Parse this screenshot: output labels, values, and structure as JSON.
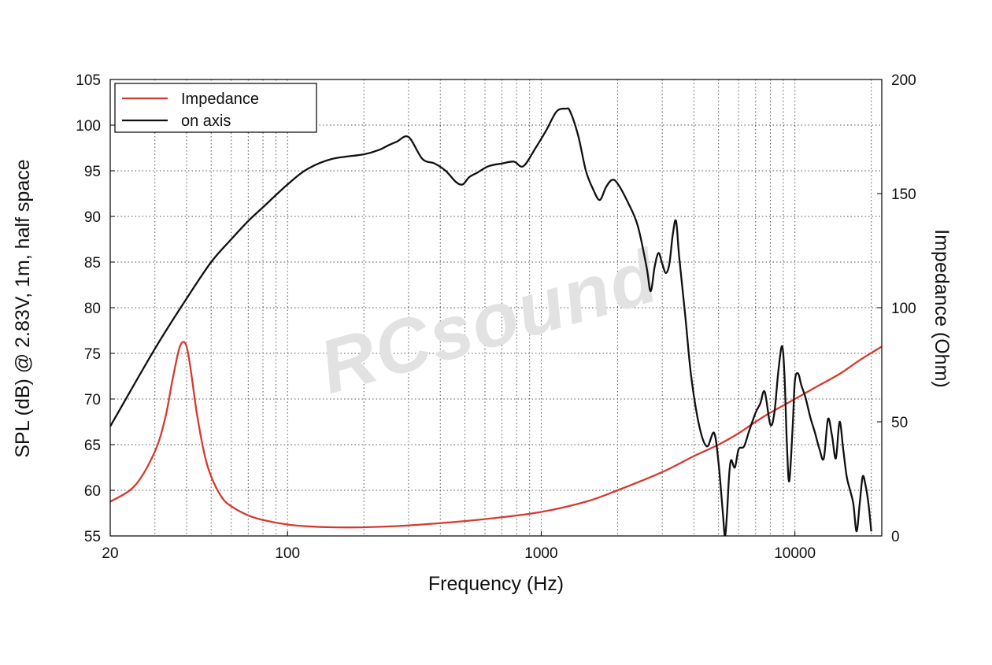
{
  "chart_data": {
    "type": "line",
    "title": "",
    "xlabel": "Frequency (Hz)",
    "ylabel_left": "SPL (dB) @ 2.83V, 1m, half space",
    "ylabel_right": "Impedance (Ohm)",
    "x_scale": "log",
    "xlim": [
      20,
      22000
    ],
    "ylim_left": [
      55,
      105
    ],
    "ylim_right": [
      0,
      200
    ],
    "x_ticks": [
      20,
      100,
      1000,
      10000
    ],
    "x_tick_labels": [
      "20",
      "100",
      "1000",
      "10000"
    ],
    "y_left_ticks": [
      55,
      60,
      65,
      70,
      75,
      80,
      85,
      90,
      95,
      100,
      105
    ],
    "y_left_tick_labels": [
      "55",
      "60",
      "65",
      "70",
      "75",
      "80",
      "85",
      "90",
      "95",
      "100",
      "105"
    ],
    "y_right_ticks": [
      0,
      50,
      100,
      150,
      200
    ],
    "y_right_tick_labels": [
      "0",
      "50",
      "100",
      "150",
      "200"
    ],
    "grid": true,
    "legend_position": "top-left",
    "watermark": "RCsound",
    "series": [
      {
        "name": "Impedance",
        "axis": "right",
        "color": "#d63a2f",
        "x": [
          20,
          25,
          30,
          33,
          35,
          37,
          38,
          39,
          40,
          41,
          42,
          44,
          47,
          50,
          55,
          60,
          70,
          80,
          100,
          120,
          150,
          200,
          300,
          500,
          700,
          1000,
          1500,
          2000,
          3000,
          4000,
          5000,
          6000,
          7000,
          8000,
          10000,
          12000,
          15000,
          18000,
          22000
        ],
        "values": [
          15,
          22,
          37,
          52,
          67,
          80,
          84,
          85,
          83,
          77,
          69,
          53,
          36,
          26,
          17,
          13,
          9,
          7,
          5,
          4.2,
          3.8,
          3.8,
          4.6,
          6.5,
          8.2,
          10.5,
          15,
          20,
          28,
          35,
          40,
          45,
          50,
          54,
          60,
          65,
          71,
          77,
          83
        ]
      },
      {
        "name": "on axis",
        "axis": "left",
        "color": "#111111",
        "x": [
          20,
          30,
          40,
          50,
          60,
          70,
          80,
          100,
          120,
          150,
          200,
          230,
          250,
          270,
          300,
          340,
          380,
          420,
          460,
          490,
          520,
          560,
          620,
          700,
          780,
          850,
          950,
          1050,
          1150,
          1250,
          1300,
          1400,
          1500,
          1600,
          1700,
          1800,
          1900,
          2000,
          2200,
          2400,
          2600,
          2700,
          2800,
          2900,
          3000,
          3100,
          3200,
          3300,
          3400,
          3500,
          3700,
          3900,
          4200,
          4500,
          4800,
          5000,
          5200,
          5300,
          5400,
          5500,
          5600,
          5800,
          6000,
          6300,
          6600,
          7000,
          7300,
          7600,
          8000,
          8300,
          8600,
          8900,
          9100,
          9300,
          9500,
          9800,
          10000,
          10300,
          10600,
          11000,
          11500,
          12000,
          12500,
          13000,
          13500,
          14000,
          14500,
          15000,
          15500,
          16000,
          16500,
          17000,
          17500,
          18000,
          18500,
          19000,
          19500,
          20000
        ],
        "values": [
          67,
          75.5,
          81,
          85,
          87.5,
          89.5,
          91,
          93.5,
          95.2,
          96.3,
          96.8,
          97.3,
          97.8,
          98.2,
          98.7,
          96.3,
          95.8,
          95.0,
          93.8,
          93.5,
          94.3,
          94.8,
          95.5,
          95.8,
          96.0,
          95.5,
          97.5,
          99.5,
          101.5,
          101.8,
          101.5,
          98.8,
          95,
          93.0,
          91.8,
          93.2,
          94.0,
          93.6,
          91.5,
          89,
          84.5,
          81.8,
          84.5,
          86.0,
          84.8,
          83.8,
          84.8,
          88.0,
          89.5,
          85.5,
          79,
          72.5,
          67.0,
          64.8,
          66.3,
          63,
          57.5,
          55,
          57.5,
          61.5,
          63.3,
          62.5,
          64.5,
          64.8,
          66.5,
          68.5,
          69.5,
          70.8,
          67.2,
          68.5,
          73,
          75.8,
          72.5,
          65,
          61,
          67,
          72.0,
          72.8,
          71.5,
          70.2,
          68,
          66.3,
          64.5,
          63.5,
          67.8,
          66,
          63.5,
          67.5,
          64.5,
          61.5,
          60,
          58.5,
          55.5,
          58.5,
          61.5,
          60.5,
          58.5,
          55.5
        ]
      }
    ]
  }
}
